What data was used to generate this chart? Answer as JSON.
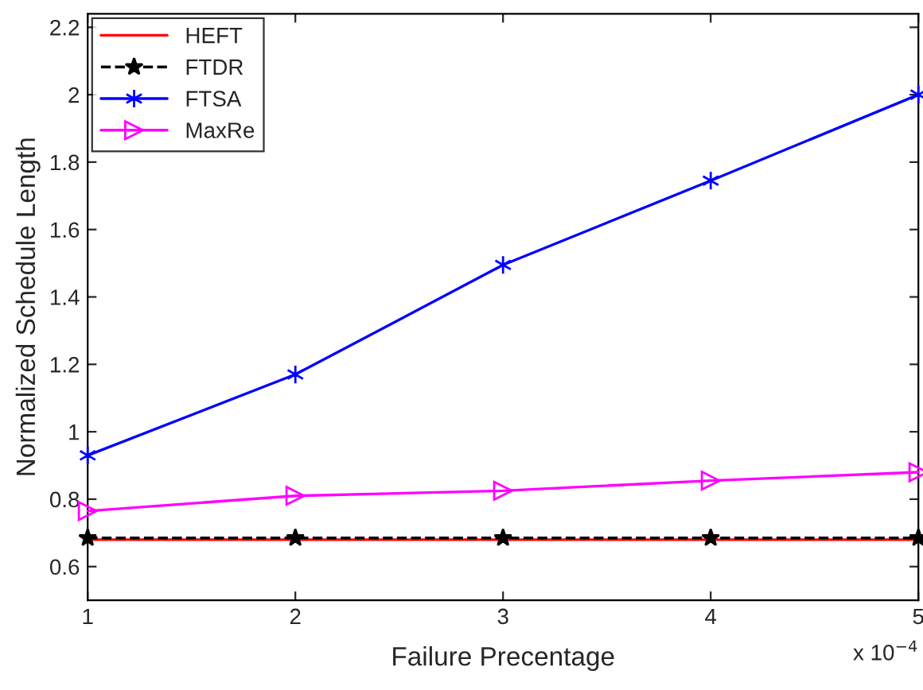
{
  "chart_data": {
    "type": "line",
    "xlabel": "Failure Precentage",
    "ylabel": "Normalized Schedule Length",
    "x": [
      1,
      2,
      3,
      4,
      5
    ],
    "series": [
      {
        "name": "HEFT",
        "color": "#ff0000",
        "values": [
          0.68,
          0.68,
          0.68,
          0.68,
          0.68
        ],
        "marker": "none",
        "line_style": "solid"
      },
      {
        "name": "FTDR",
        "color": "#000000",
        "values": [
          0.685,
          0.685,
          0.685,
          0.685,
          0.685
        ],
        "marker": "star",
        "line_style": "dashed"
      },
      {
        "name": "FTSA",
        "color": "#0000ff",
        "values": [
          0.93,
          1.17,
          1.495,
          1.745,
          2.0
        ],
        "marker": "cross",
        "line_style": "solid"
      },
      {
        "name": "MaxRe",
        "color": "#ff00ff",
        "values": [
          0.765,
          0.81,
          0.825,
          0.855,
          0.88
        ],
        "marker": "triangle",
        "line_style": "solid"
      }
    ],
    "xlim": [
      1,
      5
    ],
    "xticks": [
      1,
      2,
      3,
      4,
      5
    ],
    "ylim": [
      0.5,
      2.24
    ],
    "yticks": [
      0.6,
      0.8,
      1,
      1.2,
      1.4,
      1.6,
      1.8,
      2,
      2.2
    ],
    "annotations": [
      "x 10$^{−4}$"
    ],
    "grid": false,
    "legend": "top left"
  }
}
